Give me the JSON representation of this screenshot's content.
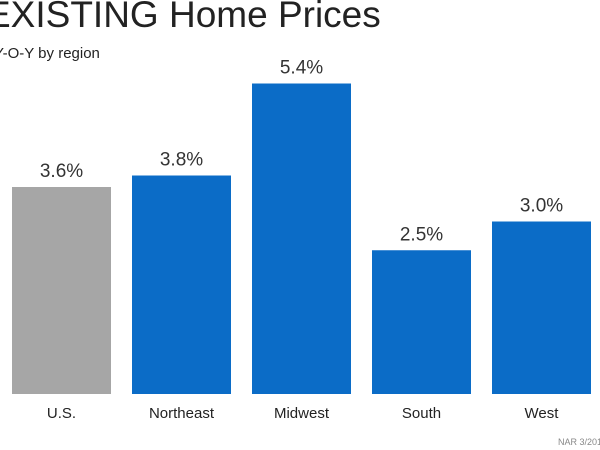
{
  "chart_data": {
    "type": "bar",
    "title": "EXISTING Home Prices",
    "subtitle": "Y-O-Y by region",
    "categories": [
      "U.S.",
      "Northeast",
      "Midwest",
      "South",
      "West"
    ],
    "values": [
      3.6,
      3.8,
      5.4,
      2.5,
      3.0
    ],
    "value_labels": [
      "3.6%",
      "3.8%",
      "5.4%",
      "2.5%",
      "3.0%"
    ],
    "bar_colors": [
      "#a6a6a6",
      "#0b6cc7",
      "#0b6cc7",
      "#0b6cc7",
      "#0b6cc7"
    ],
    "ylim": [
      0,
      5.6
    ],
    "grid": false,
    "legend": "none",
    "source": "NAR 3/2017"
  }
}
